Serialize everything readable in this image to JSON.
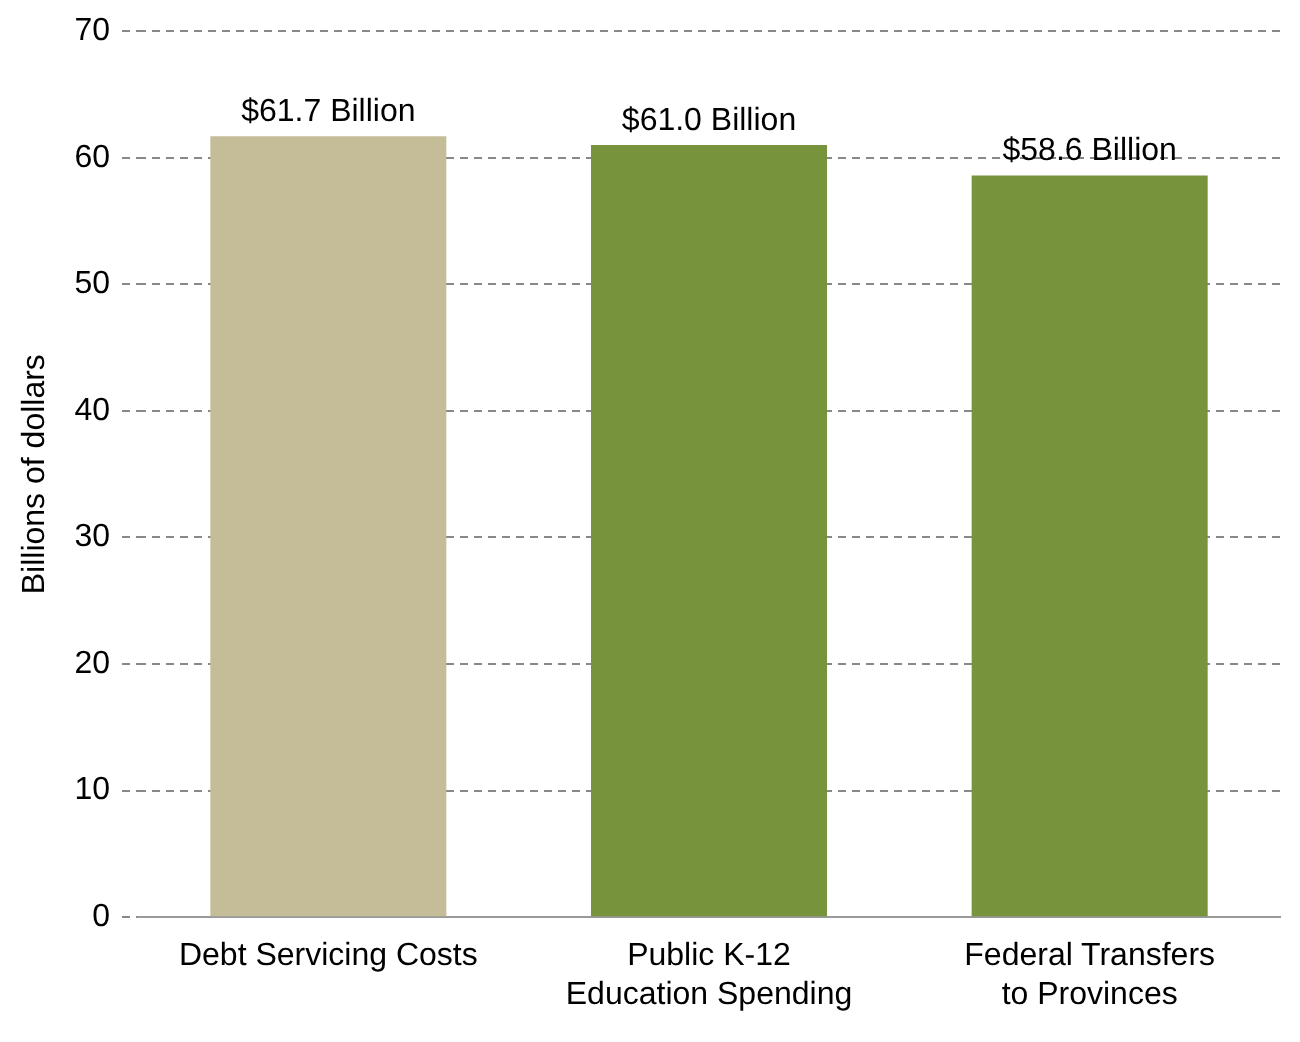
{
  "chart_data": {
    "type": "bar",
    "ylabel": "Billions of dollars",
    "categories": [
      "Debt Servicing Costs",
      "Public K-12\nEducation Spending",
      "Federal Transfers\nto Provinces"
    ],
    "values": [
      61.7,
      61.0,
      58.6
    ],
    "colors": [
      "#c4bd97",
      "#77933c",
      "#77933c"
    ],
    "value_labels": [
      "$61.7 Billion",
      "$61.0 Billion",
      "$58.6 Billion"
    ],
    "ylim": [
      0,
      70
    ],
    "yticks": [
      0,
      10,
      20,
      30,
      40,
      50,
      60,
      70
    ],
    "grid": "y",
    "legend": false
  }
}
